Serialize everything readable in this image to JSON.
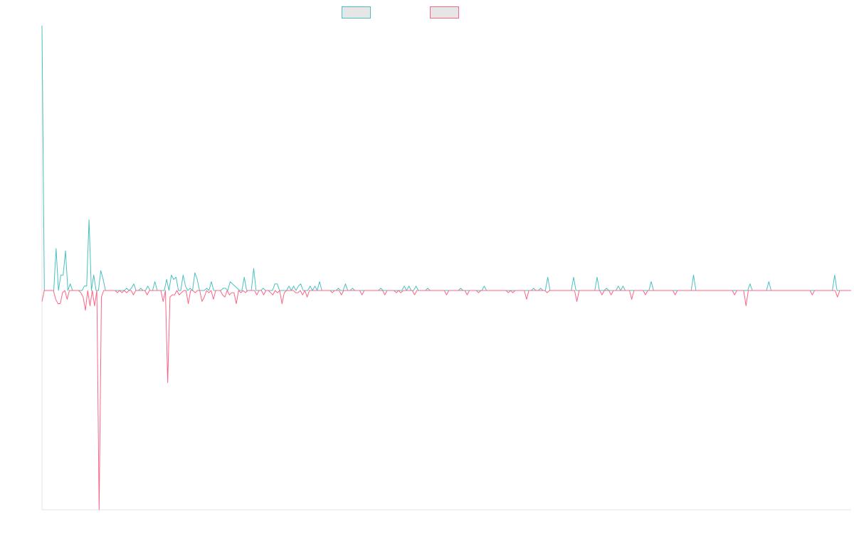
{
  "colors": {
    "series_a": "#4bc0c0",
    "series_b": "#ff6384",
    "legend_fill": "#e6e6e6",
    "axis": "#e5e5e5"
  },
  "legend": {
    "placement": "top-center",
    "items": [
      {
        "color_key": "series_a",
        "label": ""
      },
      {
        "color_key": "series_b",
        "label": ""
      }
    ]
  },
  "chart_data": {
    "type": "line",
    "title": "",
    "xlabel": "",
    "ylabel": "",
    "grid": false,
    "ylim": [
      -100,
      100
    ],
    "series": [
      {
        "color_key": "series_a",
        "values": [
          120,
          0,
          0,
          0,
          0,
          0,
          19,
          0,
          7,
          7,
          18,
          0,
          3,
          0,
          0,
          0,
          0,
          0,
          2,
          2,
          32,
          0,
          7,
          0,
          0,
          9,
          5,
          0,
          0,
          0,
          0,
          0,
          0,
          0,
          0,
          0,
          1,
          0,
          1,
          3,
          0,
          0,
          1,
          0,
          0,
          2,
          0,
          0,
          4,
          0,
          0,
          0,
          0,
          5,
          0,
          7,
          5,
          6,
          0,
          0,
          7,
          2,
          0,
          1,
          0,
          8,
          5,
          0,
          0,
          0,
          1,
          0,
          4,
          0,
          0,
          0,
          0,
          1,
          1,
          0,
          4,
          3,
          2,
          1,
          0,
          0,
          6,
          0,
          0,
          0,
          10,
          0,
          0,
          0,
          1,
          0,
          0,
          0,
          0,
          3,
          3,
          0,
          0,
          0,
          0,
          2,
          0,
          2,
          0,
          2,
          3,
          0,
          0,
          0,
          2,
          0,
          2,
          0,
          4,
          0,
          0,
          0,
          0,
          0,
          0,
          0,
          1,
          0,
          0,
          3,
          0,
          0,
          1,
          0,
          0,
          0,
          0,
          0,
          0,
          0,
          0,
          0,
          0,
          0,
          1,
          0,
          0,
          0,
          0,
          0,
          0,
          0,
          0,
          0,
          2,
          0,
          2,
          0,
          0,
          2,
          0,
          0,
          0,
          0,
          1,
          0,
          0,
          0,
          0,
          0,
          0,
          0,
          0,
          0,
          0,
          0,
          0,
          0,
          1,
          0,
          0,
          0,
          0,
          0,
          0,
          0,
          0,
          0,
          2,
          0,
          0,
          0,
          0,
          0,
          0,
          0,
          0,
          0,
          0,
          0,
          0,
          0,
          0,
          0,
          0,
          0,
          0,
          0,
          0,
          1,
          0,
          0,
          1,
          0,
          0,
          6,
          0,
          0,
          0,
          0,
          0,
          0,
          0,
          0,
          0,
          0,
          6,
          0,
          0,
          0,
          0,
          0,
          0,
          0,
          0,
          0,
          6,
          0,
          0,
          0,
          1,
          0,
          0,
          0,
          0,
          2,
          0,
          2,
          0,
          0,
          0,
          0,
          0,
          0,
          0,
          0,
          0,
          0,
          0,
          4,
          0,
          0,
          0,
          0,
          0,
          0,
          0,
          0,
          0,
          0,
          0,
          0,
          0,
          0,
          0,
          0,
          0,
          7,
          0,
          0,
          0,
          0,
          0,
          0,
          0,
          0,
          0,
          0,
          0,
          0,
          0,
          0,
          0,
          0,
          0,
          0,
          0,
          0,
          0,
          0,
          0,
          3,
          0,
          0,
          0,
          0,
          0,
          0,
          0,
          4,
          0,
          0,
          0,
          0,
          0,
          0,
          0,
          0,
          0,
          0,
          0,
          0,
          0,
          0,
          0,
          0,
          0,
          0,
          0,
          0,
          0,
          0,
          0,
          0,
          0,
          0,
          0,
          7,
          0,
          0,
          0,
          0,
          0,
          0,
          0
        ]
      },
      {
        "color_key": "series_b",
        "values": [
          -5,
          0,
          0,
          0,
          0,
          0,
          -4,
          -6,
          -6,
          -1,
          0,
          -4,
          0,
          0,
          0,
          0,
          0,
          -1,
          -3,
          -9,
          0,
          -7,
          0,
          -7,
          0,
          -100,
          -3,
          0,
          0,
          0,
          0,
          0,
          0,
          -1,
          0,
          -1,
          0,
          -1,
          0,
          0,
          -2,
          0,
          0,
          0,
          0,
          0,
          -2,
          0,
          0,
          0,
          0,
          0,
          0,
          -5,
          0,
          -42,
          -3,
          -2,
          -2,
          0,
          -2,
          -1,
          0,
          0,
          -6,
          0,
          0,
          -1,
          0,
          0,
          -5,
          -3,
          0,
          -1,
          0,
          -4,
          0,
          0,
          0,
          -2,
          -3,
          0,
          -2,
          -1,
          -1,
          -6,
          0,
          -1,
          0,
          -1,
          0,
          0,
          0,
          0,
          -2,
          0,
          0,
          -2,
          0,
          0,
          -1,
          -2,
          0,
          -1,
          0,
          -6,
          -1,
          0,
          0,
          0,
          0,
          -1,
          -1,
          0,
          -2,
          0,
          -3,
          0,
          0,
          0,
          0,
          0,
          0,
          0,
          0,
          0,
          0,
          -1,
          0,
          0,
          0,
          -2,
          0,
          0,
          0,
          0,
          0,
          0,
          0,
          0,
          -2,
          0,
          0,
          0,
          0,
          0,
          0,
          0,
          0,
          0,
          -2,
          0,
          0,
          0,
          0,
          -1,
          0,
          -1,
          0,
          0,
          0,
          0,
          0,
          -2,
          0,
          0,
          0,
          0,
          0,
          0,
          0,
          0,
          0,
          0,
          0,
          0,
          0,
          -2,
          0,
          0,
          0,
          0,
          0,
          0,
          0,
          0,
          -2,
          0,
          0,
          0,
          0,
          -1,
          0,
          0,
          0,
          0,
          0,
          0,
          0,
          0,
          0,
          0,
          0,
          0,
          -1,
          0,
          -1,
          0,
          0,
          0,
          0,
          0,
          -4,
          0,
          0,
          0,
          0,
          0,
          0,
          0,
          0,
          -1,
          0,
          0,
          0,
          0,
          0,
          0,
          0,
          0,
          0,
          0,
          0,
          0,
          -5,
          0,
          0,
          0,
          0,
          0,
          0,
          0,
          0,
          0,
          0,
          -2,
          0,
          0,
          0,
          -2,
          0,
          0,
          0,
          0,
          0,
          0,
          0,
          0,
          -4,
          0,
          0,
          0,
          0,
          0,
          -2,
          0,
          0,
          0,
          0,
          0,
          0,
          0,
          0,
          0,
          0,
          0,
          0,
          -2,
          0,
          0,
          0,
          0,
          0,
          0,
          0,
          0,
          0,
          0,
          0,
          0,
          0,
          0,
          0,
          0,
          0,
          0,
          0,
          0,
          0,
          0,
          0,
          0,
          0,
          -2,
          0,
          0,
          0,
          0,
          -7,
          0,
          0,
          0,
          0,
          0,
          0,
          0,
          0,
          0,
          0,
          0,
          0,
          0,
          0,
          0,
          0,
          0,
          0,
          0,
          0,
          0,
          0,
          0,
          0,
          0,
          0,
          0,
          0,
          -2,
          0,
          0,
          0,
          0,
          0,
          0,
          0,
          0,
          0,
          0,
          -3,
          0,
          0,
          0,
          0,
          0,
          0
        ]
      }
    ]
  }
}
